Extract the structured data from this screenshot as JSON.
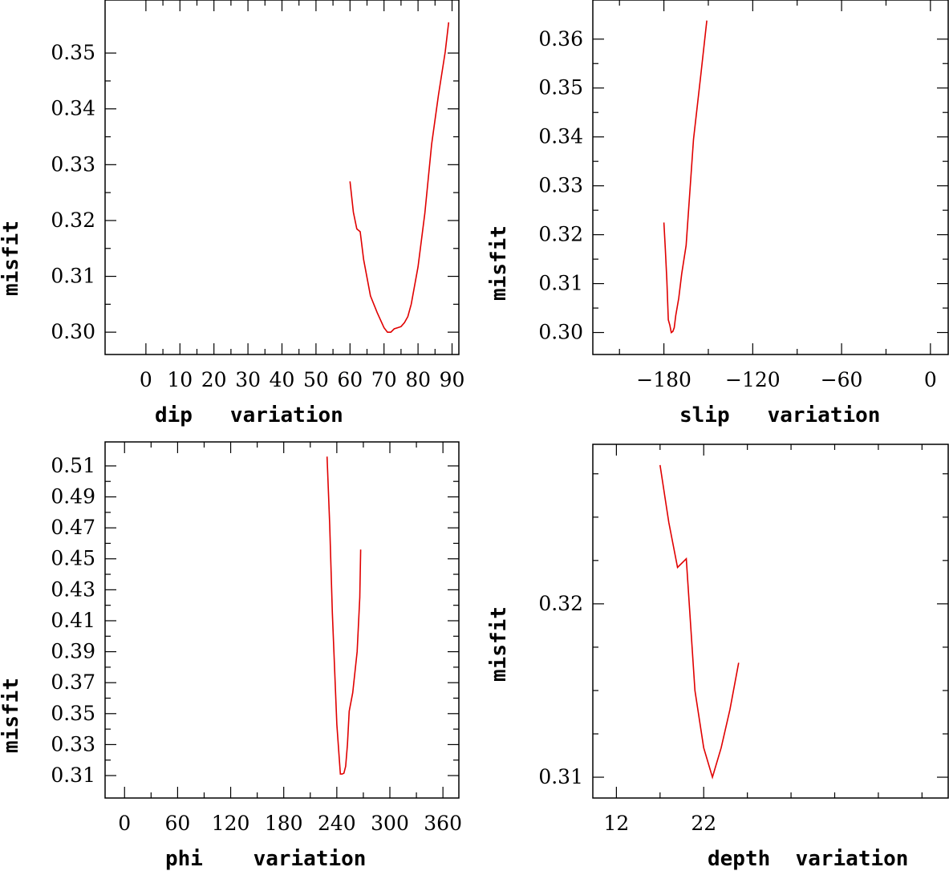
{
  "chart_data": [
    {
      "type": "line",
      "xlabel": "dip   variation",
      "ylabel": "misfit",
      "xlim": [
        -12,
        92
      ],
      "ylim": [
        0.296,
        0.3595
      ],
      "xticks": [
        0,
        10,
        20,
        30,
        40,
        50,
        60,
        70,
        80,
        90
      ],
      "xticklabels": [
        "0",
        "10",
        "20",
        "30",
        "40",
        "50",
        "60",
        "70",
        "80",
        "90"
      ],
      "xminor": [
        5,
        15,
        25,
        35,
        45,
        55,
        65,
        75,
        85
      ],
      "yticks": [
        0.3,
        0.31,
        0.32,
        0.33,
        0.34,
        0.35
      ],
      "yticklabels": [
        "0.30",
        "0.31",
        "0.32",
        "0.33",
        "0.34",
        "0.35"
      ],
      "grid": false,
      "series": [
        {
          "color": "#e00000",
          "x": [
            60,
            61,
            62,
            63,
            64,
            66,
            68,
            70,
            71,
            72,
            73,
            74,
            75,
            76,
            77,
            78,
            80,
            82,
            84,
            86,
            88,
            89
          ],
          "y": [
            0.327,
            0.3215,
            0.3185,
            0.318,
            0.313,
            0.3065,
            0.3035,
            0.3008,
            0.3,
            0.3,
            0.3006,
            0.3008,
            0.301,
            0.3017,
            0.3028,
            0.305,
            0.3117,
            0.3213,
            0.3337,
            0.3425,
            0.3502,
            0.3555
          ]
        }
      ]
    },
    {
      "type": "line",
      "xlabel": "slip   variation",
      "ylabel": "misfit",
      "xlim": [
        -228,
        12
      ],
      "ylim": [
        0.2955,
        0.368
      ],
      "xticks": [
        -180,
        -120,
        -60,
        0
      ],
      "xticklabels": [
        "−180",
        "−120",
        "−60",
        "0"
      ],
      "xminor": [
        -210,
        -150,
        -90,
        -30
      ],
      "yticks": [
        0.3,
        0.31,
        0.32,
        0.33,
        0.34,
        0.35,
        0.36
      ],
      "yticklabels": [
        "0.30",
        "0.31",
        "0.32",
        "0.33",
        "0.34",
        "0.35",
        "0.36"
      ],
      "grid": false,
      "series": [
        {
          "color": "#e00000",
          "x": [
            -180,
            -179,
            -178,
            -177,
            -176,
            -175,
            -174,
            -173,
            -172,
            -170,
            -168,
            -165,
            -160,
            -155,
            -151
          ],
          "y": [
            0.3225,
            0.317,
            0.3106,
            0.3026,
            0.3015,
            0.3,
            0.3002,
            0.301,
            0.3035,
            0.307,
            0.312,
            0.3178,
            0.3395,
            0.3528,
            0.3638
          ]
        }
      ]
    },
    {
      "type": "line",
      "xlabel": "phi    variation",
      "ylabel": "misfit",
      "xlim": [
        -22,
        378
      ],
      "ylim": [
        0.2955,
        0.5255
      ],
      "xticks": [
        0,
        60,
        120,
        180,
        240,
        300,
        360
      ],
      "xticklabels": [
        "0",
        "60",
        "120",
        "180",
        "240",
        "300",
        "360"
      ],
      "xminor": [
        30,
        90,
        150,
        210,
        270,
        330
      ],
      "yticks": [
        0.31,
        0.33,
        0.35,
        0.37,
        0.39,
        0.41,
        0.43,
        0.45,
        0.47,
        0.49,
        0.51
      ],
      "yticklabels": [
        "0.31",
        "0.33",
        "0.35",
        "0.37",
        "0.39",
        "0.41",
        "0.43",
        "0.45",
        "0.47",
        "0.49",
        "0.51"
      ],
      "grid": false,
      "series": [
        {
          "color": "#e00000",
          "x": [
            229,
            232,
            235,
            240,
            244,
            246,
            248,
            250,
            252,
            254,
            258,
            263,
            266,
            267
          ],
          "y": [
            0.516,
            0.472,
            0.415,
            0.343,
            0.311,
            0.311,
            0.3115,
            0.316,
            0.33,
            0.3515,
            0.3635,
            0.39,
            0.425,
            0.456
          ]
        }
      ]
    },
    {
      "type": "line",
      "xlabel": "depth  variation",
      "ylabel": "misfit",
      "xlim": [
        9.3,
        50
      ],
      "ylim": [
        0.3088,
        0.3292
      ],
      "xticks": [
        12,
        22
      ],
      "xticklabels": [
        "12",
        "22"
      ],
      "xminor": [
        17,
        27,
        32,
        37,
        42,
        47
      ],
      "yticks": [
        0.31,
        0.32
      ],
      "yticklabels": [
        "0.31",
        "0.32"
      ],
      "yminor": [
        0.3125,
        0.315,
        0.3175,
        0.3225,
        0.325,
        0.3275
      ],
      "grid": false,
      "series": [
        {
          "color": "#e00000",
          "x": [
            17,
            18,
            19,
            20,
            21,
            22,
            23,
            24,
            25,
            26
          ],
          "y": [
            0.328,
            0.3247,
            0.3221,
            0.3226,
            0.315,
            0.3117,
            0.31,
            0.3117,
            0.3139,
            0.3166
          ]
        }
      ]
    }
  ]
}
